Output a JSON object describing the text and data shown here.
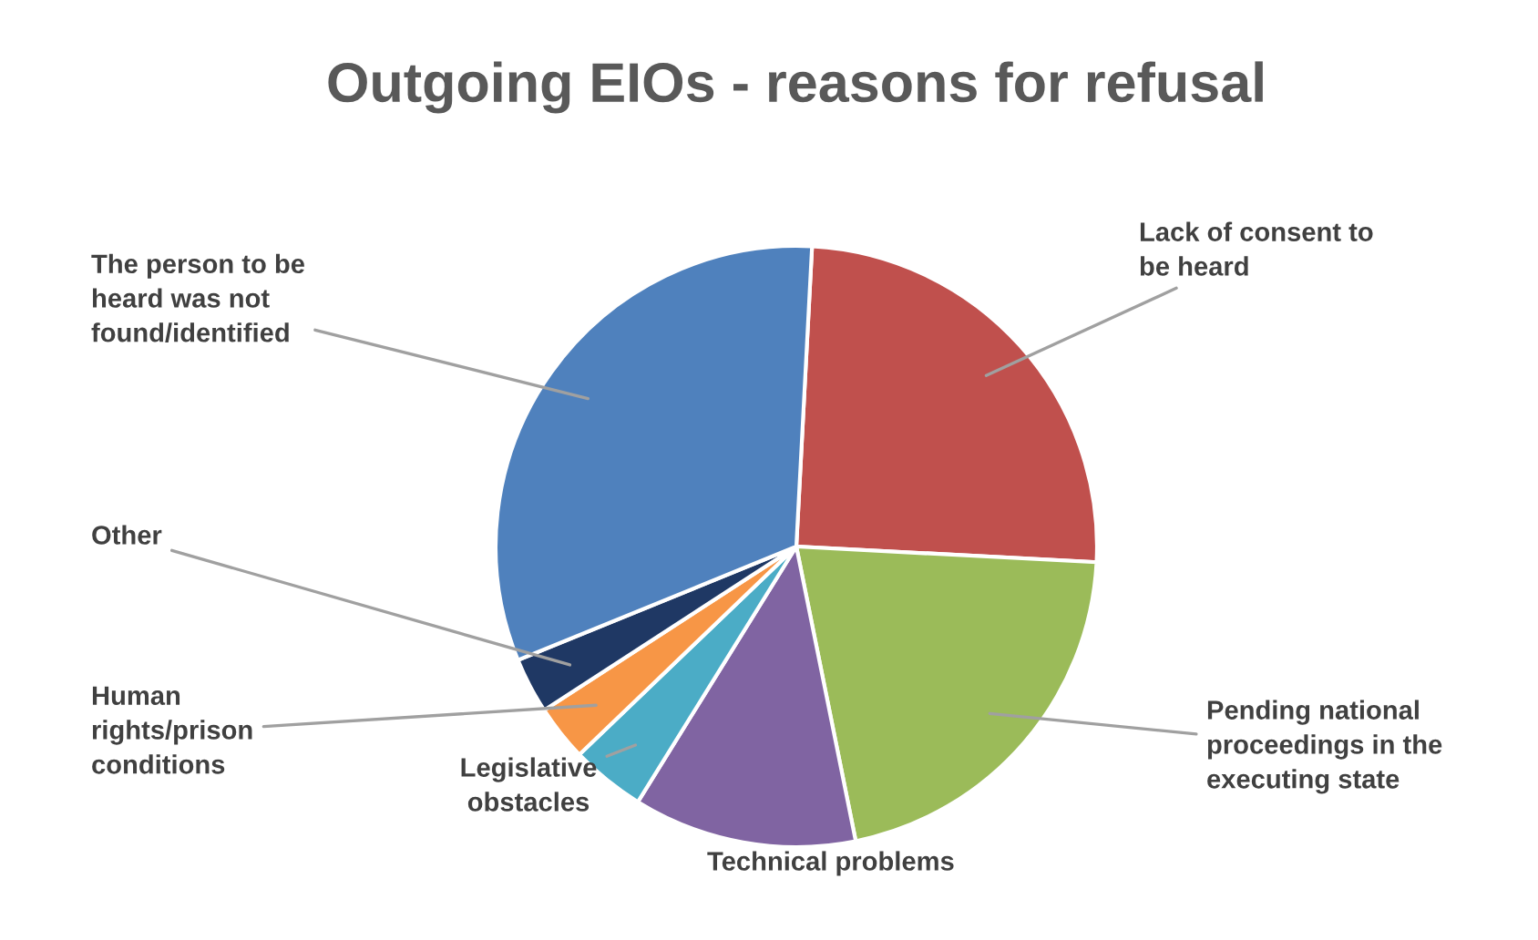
{
  "chart_data": {
    "type": "pie",
    "title": "Outgoing EIOs - reasons for refusal",
    "categories": [
      "Lack of consent to\nbe heard",
      "Pending national\nproceedings in the\nexecuting state",
      "Technical problems",
      "Legislative\nobstacles",
      "Human\nrights/prison\nconditions",
      "Other",
      "The person to be\nheard was not\nfound/identified"
    ],
    "values": [
      25,
      21,
      12,
      4,
      3,
      3,
      32
    ],
    "colors": [
      "#c0504d",
      "#9bbb59",
      "#8064a2",
      "#4bacc6",
      "#f79646",
      "#1f3864",
      "#4f81bd"
    ]
  }
}
